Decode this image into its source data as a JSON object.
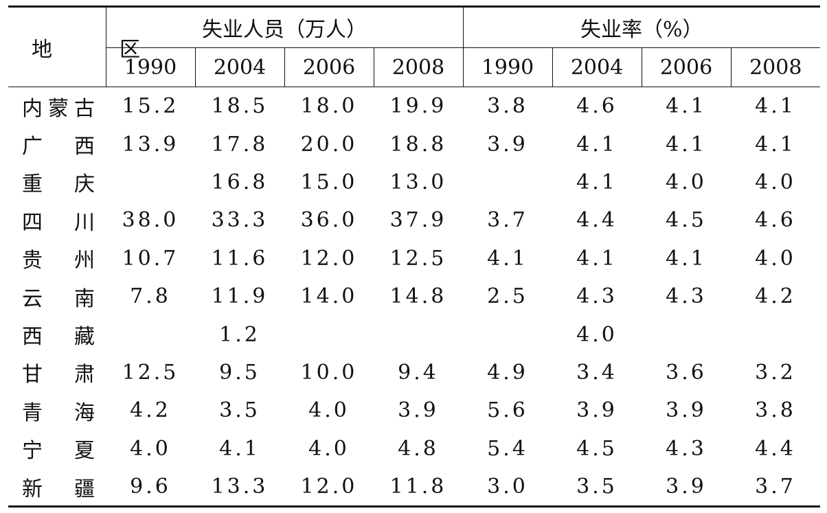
{
  "table": {
    "region_header": "地　区",
    "group_headers": [
      "失业人员（万人）",
      "失业率（%）"
    ],
    "year_headers": [
      "1990",
      "2004",
      "2006",
      "2008",
      "1990",
      "2004",
      "2006",
      "2008"
    ],
    "rows": [
      {
        "region": "内蒙古",
        "values": [
          "15.2",
          "18.5",
          "18.0",
          "19.9",
          "3.8",
          "4.6",
          "4.1",
          "4.1"
        ]
      },
      {
        "region": "广　西",
        "values": [
          "13.9",
          "17.8",
          "20.0",
          "18.8",
          "3.9",
          "4.1",
          "4.1",
          "4.1"
        ]
      },
      {
        "region": "重　庆",
        "values": [
          "",
          "16.8",
          "15.0",
          "13.0",
          "",
          "4.1",
          "4.0",
          "4.0"
        ]
      },
      {
        "region": "四　川",
        "values": [
          "38.0",
          "33.3",
          "36.0",
          "37.9",
          "3.7",
          "4.4",
          "4.5",
          "4.6"
        ]
      },
      {
        "region": "贵　州",
        "values": [
          "10.7",
          "11.6",
          "12.0",
          "12.5",
          "4.1",
          "4.1",
          "4.1",
          "4.0"
        ]
      },
      {
        "region": "云　南",
        "values": [
          "7.8",
          "11.9",
          "14.0",
          "14.8",
          "2.5",
          "4.3",
          "4.3",
          "4.2"
        ]
      },
      {
        "region": "西　藏",
        "values": [
          "",
          "1.2",
          "",
          "",
          "",
          "4.0",
          "",
          ""
        ]
      },
      {
        "region": "甘　肃",
        "values": [
          "12.5",
          "9.5",
          "10.0",
          "9.4",
          "4.9",
          "3.4",
          "3.6",
          "3.2"
        ]
      },
      {
        "region": "青　海",
        "values": [
          "4.2",
          "3.5",
          "4.0",
          "3.9",
          "5.6",
          "3.9",
          "3.9",
          "3.8"
        ]
      },
      {
        "region": "宁　夏",
        "values": [
          "4.0",
          "4.1",
          "4.0",
          "4.8",
          "5.4",
          "4.5",
          "4.3",
          "4.4"
        ]
      },
      {
        "region": "新　疆",
        "values": [
          "9.6",
          "13.3",
          "12.0",
          "11.8",
          "3.0",
          "3.5",
          "3.9",
          "3.7"
        ]
      }
    ]
  }
}
